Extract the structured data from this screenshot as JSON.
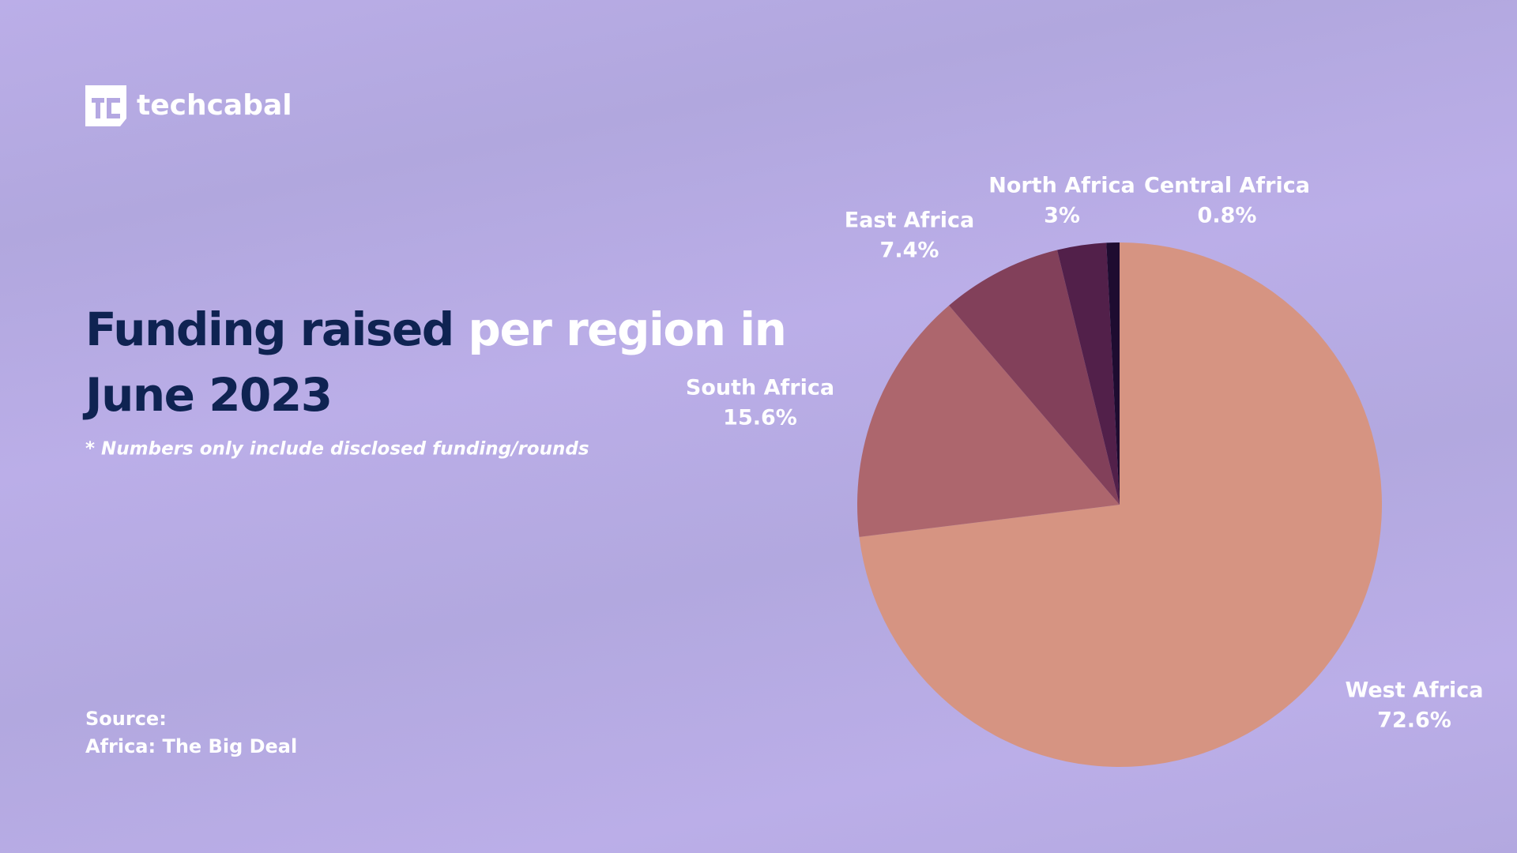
{
  "brand": "techcabal",
  "chart_data": {
    "type": "pie",
    "title": [
      "Funding raised",
      "per region in",
      "June 2023"
    ],
    "note": "* Numbers only include disclosed funding/rounds",
    "source": [
      "Source:",
      "Africa: The Big Deal"
    ],
    "categories": [
      "West Africa",
      "South Africa",
      "East Africa",
      "North Africa",
      "Central Africa"
    ],
    "values": [
      72.6,
      15.6,
      7.4,
      3,
      0.8
    ],
    "value_labels": [
      "72.6%",
      "15.6%",
      "7.4%",
      "3%",
      "0.8%"
    ],
    "colors": [
      "#d69482",
      "#ad666d",
      "#82405a",
      "#52204a",
      "#1e0c30"
    ]
  }
}
